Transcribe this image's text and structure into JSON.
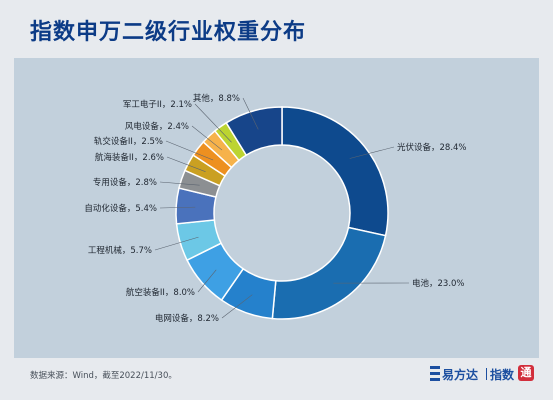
{
  "title": "指数申万二级行业权重分布",
  "source": "数据来源：Wind，截至2022/11/30。",
  "logo": {
    "brand": "易方达",
    "product": "指数",
    "seal": "通"
  },
  "chart_data": {
    "type": "pie",
    "donut": true,
    "title": "",
    "slices": [
      {
        "label": "光伏设备，28.4%",
        "name": "光伏设备",
        "value": 28.4,
        "color": "#0e4a8e"
      },
      {
        "label": "电池，23.0%",
        "name": "电池",
        "value": 23.0,
        "color": "#1a6db0"
      },
      {
        "label": "电网设备，8.2%",
        "name": "电网设备",
        "value": 8.2,
        "color": "#2581cc"
      },
      {
        "label": "航空装备II，8.0%",
        "name": "航空装备II",
        "value": 8.0,
        "color": "#3ea0e4"
      },
      {
        "label": "工程机械，5.7%",
        "name": "工程机械",
        "value": 5.7,
        "color": "#6cc8e6"
      },
      {
        "label": "自动化设备，5.4%",
        "name": "自动化设备",
        "value": 5.4,
        "color": "#4a72bc"
      },
      {
        "label": "专用设备，2.8%",
        "name": "专用设备",
        "value": 2.8,
        "color": "#8c8f92"
      },
      {
        "label": "航海装备II，2.6%",
        "name": "航海装备II",
        "value": 2.6,
        "color": "#caa022"
      },
      {
        "label": "轨交设备II，2.5%",
        "name": "轨交设备II",
        "value": 2.5,
        "color": "#ed9020"
      },
      {
        "label": "风电设备，2.4%",
        "name": "风电设备",
        "value": 2.4,
        "color": "#f6b24a"
      },
      {
        "label": "军工电子II，2.1%",
        "name": "军工电子II",
        "value": 2.1,
        "color": "#e9d23a"
      },
      {
        "label": "其他，8.8%",
        "name": "其他",
        "value": 8.8,
        "color": "#17458a"
      }
    ],
    "special_colors": {
      "军工电子II": "#bcd431"
    }
  }
}
